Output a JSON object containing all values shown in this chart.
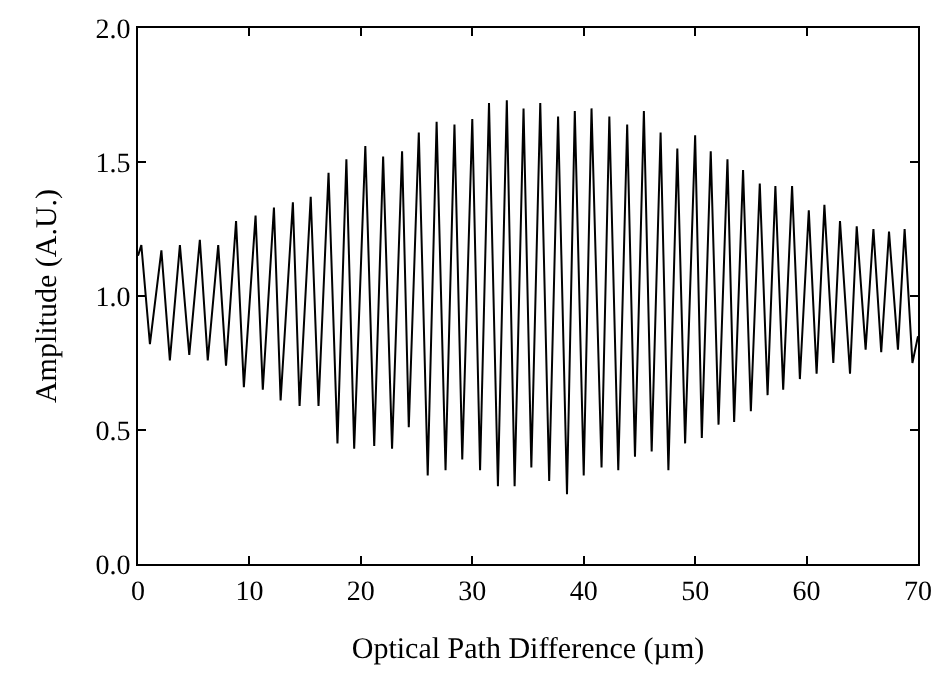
{
  "chart_data": {
    "type": "line",
    "xlabel": "Optical Path Difference (µm)",
    "ylabel": "Amplitude (A.U.)",
    "xlim": [
      0,
      70
    ],
    "xticks": [
      0,
      10,
      20,
      30,
      40,
      50,
      60,
      70
    ],
    "ylim": [
      0,
      2
    ],
    "yticks": [
      {
        "value": 0,
        "label": "0.0"
      },
      0.5,
      {
        "value": 1,
        "label": "1.0"
      },
      1.5,
      {
        "value": 2,
        "label": "2.0"
      }
    ],
    "marker": "none",
    "line_style": "solid",
    "series": [
      {
        "color": "#000000",
        "x": [
          0,
          0.3,
          1.07,
          2.1,
          2.86,
          3.76,
          4.6,
          5.55,
          6.26,
          7.2,
          7.9,
          8.8,
          9.5,
          10.55,
          11.2,
          12.2,
          12.8,
          13.9,
          14.5,
          15.5,
          16.2,
          17.1,
          17.9,
          18.7,
          19.4,
          20.4,
          21.2,
          22.0,
          22.8,
          23.7,
          24.3,
          25.2,
          26.0,
          26.8,
          27.6,
          28.4,
          29.1,
          30.0,
          30.7,
          31.5,
          32.3,
          33.1,
          33.8,
          34.6,
          35.3,
          36.1,
          36.9,
          37.7,
          38.5,
          39.2,
          40.0,
          40.7,
          41.6,
          42.3,
          43.1,
          43.9,
          44.6,
          45.4,
          46.1,
          46.9,
          47.6,
          48.4,
          49.1,
          50.0,
          50.6,
          51.4,
          52.1,
          52.9,
          53.5,
          54.3,
          55.0,
          55.8,
          56.5,
          57.2,
          57.9,
          58.7,
          59.4,
          60.2,
          60.9,
          61.6,
          62.4,
          63.0,
          63.9,
          64.5,
          65.3,
          66.0,
          66.7,
          67.4,
          68.2,
          68.8,
          69.5,
          70
        ],
        "values": [
          1.15,
          1.19,
          0.82,
          1.17,
          0.76,
          1.19,
          0.78,
          1.21,
          0.76,
          1.19,
          0.74,
          1.28,
          0.66,
          1.3,
          0.65,
          1.33,
          0.61,
          1.35,
          0.59,
          1.37,
          0.59,
          1.46,
          0.45,
          1.51,
          0.43,
          1.56,
          0.44,
          1.52,
          0.43,
          1.54,
          0.51,
          1.61,
          0.33,
          1.65,
          0.35,
          1.64,
          0.39,
          1.66,
          0.35,
          1.72,
          0.29,
          1.73,
          0.29,
          1.7,
          0.36,
          1.72,
          0.31,
          1.67,
          0.26,
          1.69,
          0.33,
          1.7,
          0.36,
          1.67,
          0.35,
          1.64,
          0.4,
          1.69,
          0.42,
          1.61,
          0.35,
          1.55,
          0.45,
          1.6,
          0.47,
          1.54,
          0.52,
          1.51,
          0.53,
          1.47,
          0.57,
          1.42,
          0.63,
          1.41,
          0.65,
          1.41,
          0.69,
          1.32,
          0.71,
          1.34,
          0.75,
          1.28,
          0.71,
          1.26,
          0.8,
          1.25,
          0.79,
          1.24,
          0.8,
          1.25,
          0.75,
          0.85
        ]
      }
    ]
  }
}
